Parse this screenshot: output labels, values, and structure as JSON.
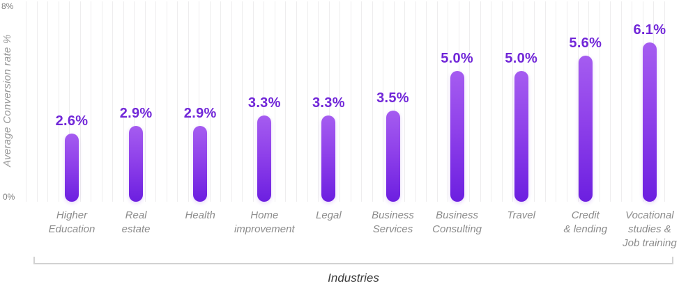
{
  "chart_data": {
    "type": "bar",
    "title": "",
    "xlabel": "Industries",
    "ylabel": "Average Conversion rate %",
    "ylim": [
      0,
      8
    ],
    "y_ticks": [
      {
        "label": "8%",
        "value": 8
      },
      {
        "label": "0%",
        "value": 0
      }
    ],
    "grid": "vertical-only",
    "legend": "none",
    "categories": [
      "Higher Education",
      "Real estate",
      "Health",
      "Home improvement",
      "Legal",
      "Business Services",
      "Business Consulting",
      "Travel",
      "Credit & lending",
      "Vocational studies & Job training"
    ],
    "category_lines": [
      [
        "Higher",
        "Education"
      ],
      [
        "Real",
        "estate"
      ],
      [
        "Health"
      ],
      [
        "Home",
        "improvement"
      ],
      [
        "Legal"
      ],
      [
        "Business",
        "Services"
      ],
      [
        "Business",
        "Consulting"
      ],
      [
        "Travel"
      ],
      [
        "Credit",
        "& lending"
      ],
      [
        "Vocational",
        "studies &",
        "Job training"
      ]
    ],
    "values": [
      2.6,
      2.9,
      2.9,
      3.3,
      3.3,
      3.5,
      5.0,
      5.0,
      5.6,
      6.1
    ],
    "value_labels": [
      "2.6%",
      "2.9%",
      "2.9%",
      "3.3%",
      "3.3%",
      "3.5%",
      "5.0%",
      "5.0%",
      "5.6%",
      "6.1%"
    ],
    "colors": {
      "bar_gradient_top": "#a55cf0",
      "bar_gradient_bottom": "#6c1fe0",
      "value_label_text": "#7127d8",
      "category_text": "#8c8c8c",
      "axis_tick_text": "#7d7d7d",
      "y_title_text": "#979797",
      "x_title_text": "#3c3c3c",
      "gridline": "#eeedee",
      "bracket_line": "#d2d2d2"
    }
  }
}
